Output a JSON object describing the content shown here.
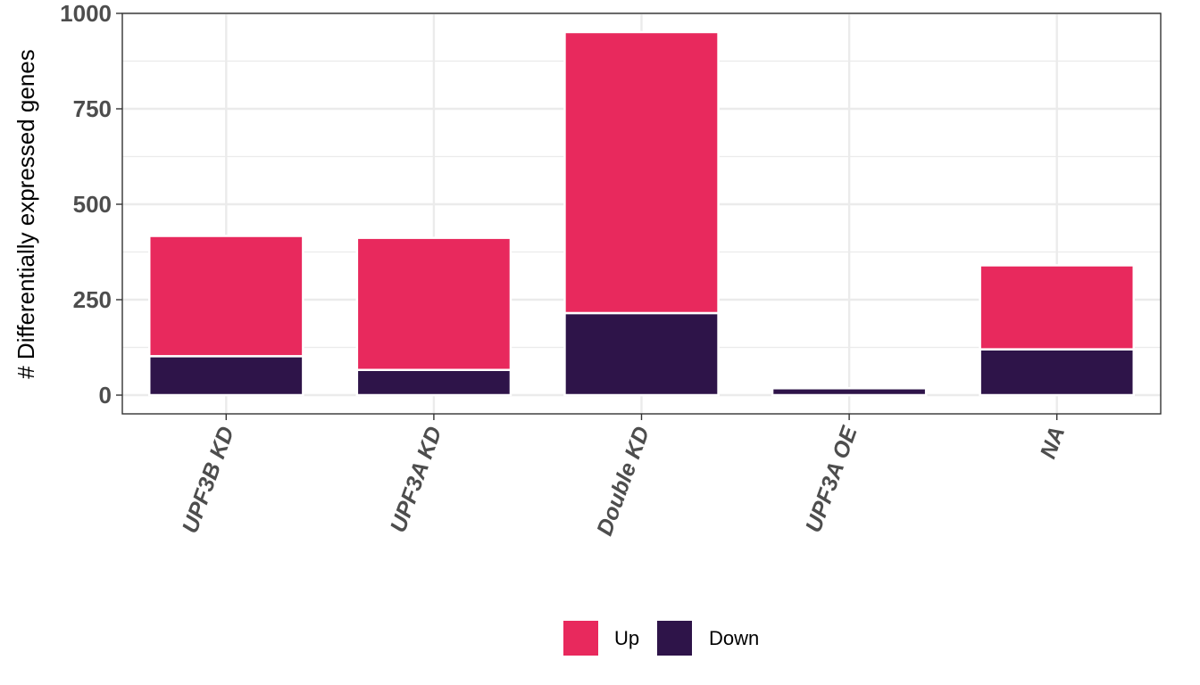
{
  "chart_data": {
    "type": "bar",
    "stacked": true,
    "categories": [
      "UPF3B KD",
      "UPF3A KD",
      "Double KD",
      "UPF3A OE",
      "NA"
    ],
    "series": [
      {
        "name": "Down",
        "values": [
          102,
          66,
          215,
          18,
          120
        ],
        "color": "#2E1449"
      },
      {
        "name": "Up",
        "values": [
          315,
          346,
          736,
          0,
          220
        ],
        "color": "#E8295D"
      }
    ],
    "legend_order": [
      "Up",
      "Down"
    ],
    "title": "",
    "xlabel": "",
    "ylabel": "# Differentially expressed genes",
    "ylim": [
      0,
      1000
    ],
    "yticks": [
      0,
      250,
      500,
      750,
      1000
    ],
    "grid": true,
    "legend_position": "bottom"
  }
}
